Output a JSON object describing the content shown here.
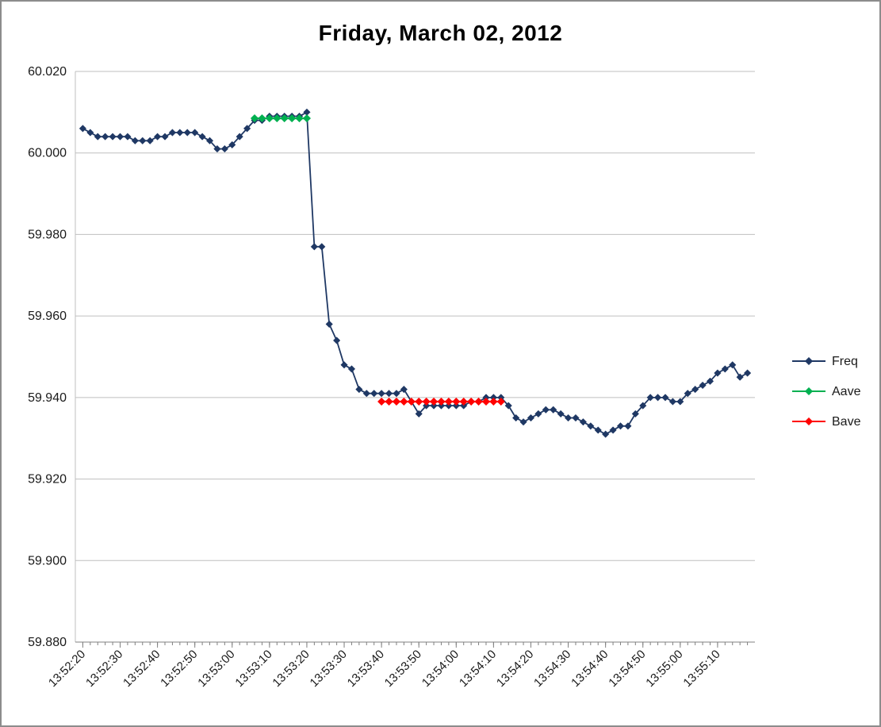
{
  "title": "Friday, March 02, 2012",
  "styles": {
    "background": "#FFFFFF",
    "border_color": "#8C8C8C",
    "grid_color": "#BFBFBF",
    "axis_color": "#808080",
    "text_color": "#1A1A1A"
  },
  "chart_data": {
    "type": "line",
    "title": "Friday, March 02, 2012",
    "grid": "horizontal",
    "legend_position": "right",
    "x_axis": {
      "unit": "time-of-day",
      "range_min": "13:52:18",
      "range_max": "13:55:20",
      "minor_tick_seconds": 2,
      "tick_labels": [
        "13:52:20",
        "13:52:30",
        "13:52:40",
        "13:52:50",
        "13:53:00",
        "13:53:10",
        "13:53:20",
        "13:53:30",
        "13:53:40",
        "13:53:50",
        "13:54:00",
        "13:54:10",
        "13:54:20",
        "13:54:30",
        "13:54:40",
        "13:54:50",
        "13:55:00",
        "13:55:10"
      ]
    },
    "y_axis": {
      "min": 59.88,
      "max": 60.02,
      "tick_labels": [
        "60.020",
        "60.000",
        "59.980",
        "59.960",
        "59.940",
        "59.920",
        "59.900",
        "59.880"
      ]
    },
    "series": [
      {
        "name": "Freq",
        "color": "#1F3864",
        "start": "13:52:20",
        "interval_seconds": 2,
        "marker": "diamond",
        "values": [
          60.006,
          60.005,
          60.004,
          60.004,
          60.004,
          60.004,
          60.004,
          60.003,
          60.003,
          60.003,
          60.004,
          60.004,
          60.005,
          60.005,
          60.005,
          60.005,
          60.004,
          60.003,
          60.001,
          60.001,
          60.002,
          60.004,
          60.006,
          60.008,
          60.008,
          60.009,
          60.009,
          60.009,
          60.009,
          60.009,
          60.01,
          59.977,
          59.977,
          59.958,
          59.954,
          59.948,
          59.947,
          59.942,
          59.941,
          59.941,
          59.941,
          59.941,
          59.941,
          59.942,
          59.939,
          59.936,
          59.938,
          59.938,
          59.938,
          59.938,
          59.938,
          59.938,
          59.939,
          59.939,
          59.94,
          59.94,
          59.94,
          59.938,
          59.935,
          59.934,
          59.935,
          59.936,
          59.937,
          59.937,
          59.936,
          59.935,
          59.935,
          59.934,
          59.933,
          59.932,
          59.931,
          59.932,
          59.933,
          59.933,
          59.936,
          59.938,
          59.94,
          59.94,
          59.94,
          59.939,
          59.939,
          59.941,
          59.942,
          59.943,
          59.944,
          59.946,
          59.947,
          59.948,
          59.945,
          59.946
        ]
      },
      {
        "name": "Aave",
        "color": "#00B050",
        "start": "13:53:06",
        "interval_seconds": 2,
        "marker": "diamond",
        "values": [
          60.0085,
          60.0085,
          60.0085,
          60.0085,
          60.0085,
          60.0085,
          60.0085,
          60.0085
        ]
      },
      {
        "name": "Bave",
        "color": "#FF0000",
        "start": "13:53:40",
        "interval_seconds": 2,
        "marker": "diamond",
        "values": [
          59.939,
          59.939,
          59.939,
          59.939,
          59.939,
          59.939,
          59.939,
          59.939,
          59.939,
          59.939,
          59.939,
          59.939,
          59.939,
          59.939,
          59.939,
          59.939,
          59.939
        ]
      }
    ]
  }
}
